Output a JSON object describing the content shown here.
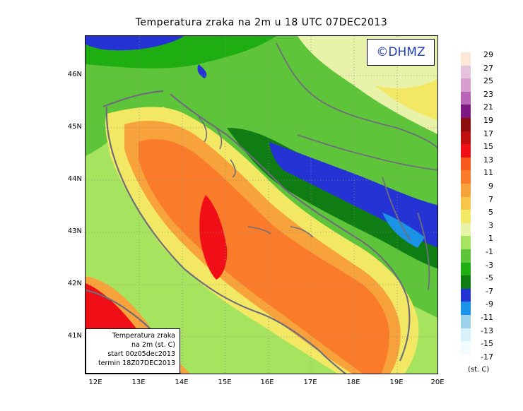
{
  "title": "Temperatura zraka na 2m u 18 UTC 07DEC2013",
  "logo": "©DHMZ",
  "infobox": {
    "line1": "Temperatura zraka",
    "line2": "na 2m (st. C)",
    "line3": "start 00z05dec2013",
    "line4": "termin 18Z07DEC2013"
  },
  "lat_labels": [
    "46N",
    "45N",
    "44N",
    "43N",
    "42N",
    "41N"
  ],
  "lon_labels": [
    "12E",
    "13E",
    "14E",
    "15E",
    "16E",
    "17E",
    "18E",
    "19E",
    "20E"
  ],
  "legend": {
    "unit": "(st. C)",
    "bins": [
      {
        "label": "29",
        "color": "#fde8d8"
      },
      {
        "label": "27",
        "color": "#e6c3dd"
      },
      {
        "label": "25",
        "color": "#d79fcd"
      },
      {
        "label": "23",
        "color": "#b965b6"
      },
      {
        "label": "21",
        "color": "#7e1883"
      },
      {
        "label": "19",
        "color": "#8d0e0e"
      },
      {
        "label": "17",
        "color": "#c00f0f"
      },
      {
        "label": "15",
        "color": "#f00e17"
      },
      {
        "label": "13",
        "color": "#f75a1a"
      },
      {
        "label": "11",
        "color": "#fa7c2b"
      },
      {
        "label": "9",
        "color": "#f7a23b"
      },
      {
        "label": "7",
        "color": "#f6c748"
      },
      {
        "label": "5",
        "color": "#f2e864"
      },
      {
        "label": "3",
        "color": "#e9f2a9"
      },
      {
        "label": "1",
        "color": "#a6e35e"
      },
      {
        "label": "-1",
        "color": "#5ec43a"
      },
      {
        "label": "-3",
        "color": "#1fae12"
      },
      {
        "label": "-5",
        "color": "#0f7d14"
      },
      {
        "label": "-7",
        "color": "#2533d4"
      },
      {
        "label": "-9",
        "color": "#1a93e6"
      },
      {
        "label": "-11",
        "color": "#9dd3ea"
      },
      {
        "label": "-13",
        "color": "#d6f1f7"
      },
      {
        "label": "-15",
        "color": "#f2fbfd"
      },
      {
        "label": "-17",
        "color": "#ffffff"
      }
    ]
  }
}
